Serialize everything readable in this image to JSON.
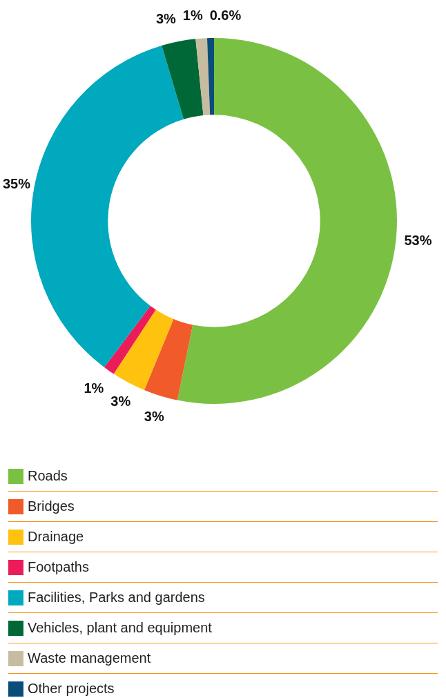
{
  "chart_data": {
    "type": "donut",
    "categories": [
      "Roads",
      "Bridges",
      "Drainage",
      "Footpaths",
      "Facilities, Parks and gardens",
      "Vehicles, plant and equipment",
      "Waste management",
      "Other projects"
    ],
    "values": [
      53,
      3,
      3,
      1,
      35,
      3,
      1,
      0.6
    ],
    "colors": [
      "#7ac143",
      "#f15a29",
      "#ffc20e",
      "#ec1c5b",
      "#00a9bd",
      "#006837",
      "#c8bca0",
      "#0b4d7a"
    ],
    "value_labels": [
      "53%",
      "3%",
      "3%",
      "1%",
      "35%",
      "3%",
      "1%",
      "0.6%"
    ],
    "legend": "bottom"
  }
}
